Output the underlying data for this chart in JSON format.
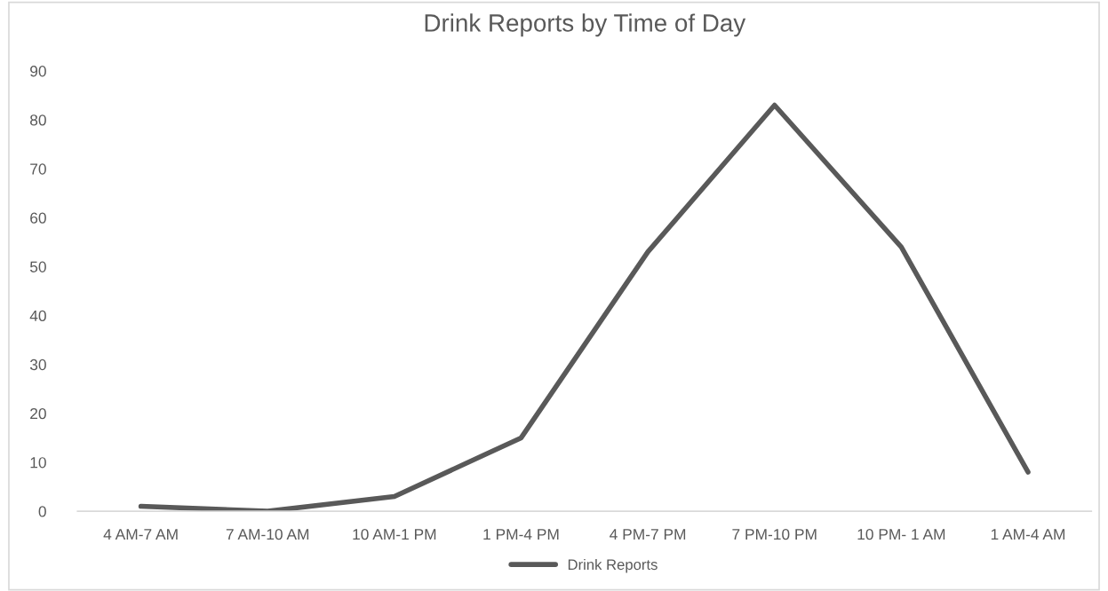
{
  "chart_data": {
    "type": "line",
    "title": "Drink Reports by Time of Day",
    "categories": [
      "4 AM-7 AM",
      "7 AM-10 AM",
      "10 AM-1 PM",
      "1 PM-4 PM",
      "4 PM-7 PM",
      "7 PM-10 PM",
      "10 PM- 1 AM",
      "1 AM-4 AM"
    ],
    "series": [
      {
        "name": "Drink Reports",
        "color": "#595959",
        "values": [
          1,
          0,
          3,
          15,
          53,
          83,
          54,
          8
        ]
      }
    ],
    "ylim": [
      0,
      90
    ],
    "yticks": [
      0,
      10,
      20,
      30,
      40,
      50,
      60,
      70,
      80,
      90
    ],
    "grid": false,
    "legend": "bottom",
    "marker": "none",
    "line_style": "solid"
  }
}
